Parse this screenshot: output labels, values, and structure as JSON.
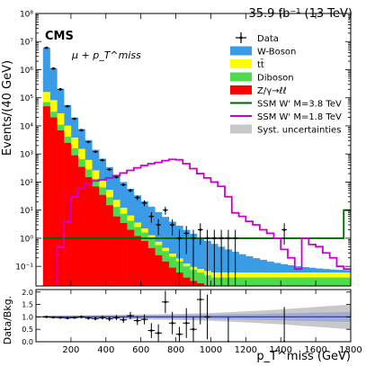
{
  "header": {
    "lumi": "35.9 fb⁻¹ (13 TeV)",
    "cms_label": "CMS",
    "channel": "μ + p_T^miss"
  },
  "chart_data": [
    {
      "type": "histogram",
      "yscale": "log",
      "ylabel": "Events/(40 GeV)",
      "xlim": [
        0,
        1800
      ],
      "ylim": [
        0.02,
        100000000
      ],
      "yticks": [
        {
          "v": 0.1,
          "label": "10⁻¹"
        },
        {
          "v": 1,
          "label": "10⁰"
        },
        {
          "v": 10,
          "label": "10¹"
        },
        {
          "v": 100,
          "label": "10²"
        },
        {
          "v": 1000,
          "label": "10³"
        },
        {
          "v": 10000,
          "label": "10⁴"
        },
        {
          "v": 100000,
          "label": "10⁵"
        },
        {
          "v": 1000000,
          "label": "10⁶"
        },
        {
          "v": 10000000,
          "label": "10⁷"
        },
        {
          "v": 100000000,
          "label": "10⁸"
        }
      ],
      "bin_edges": [
        40,
        80,
        120,
        160,
        200,
        240,
        280,
        320,
        360,
        400,
        440,
        480,
        520,
        560,
        600,
        640,
        680,
        720,
        760,
        800,
        840,
        880,
        920,
        960,
        1000,
        1040,
        1080,
        1120,
        1160,
        1200,
        1240,
        1280,
        1320,
        1360,
        1400,
        1440,
        1480,
        1520,
        1560,
        1600,
        1640,
        1680,
        1720,
        1760,
        1800
      ],
      "stack": [
        {
          "name": "Z/γ→ℓℓ",
          "color": "#ff0000",
          "values": [
            50000,
            20000,
            7000,
            2500,
            900,
            350,
            150,
            70,
            35,
            15,
            6,
            3.5,
            2,
            1.2,
            0.8,
            0.45,
            0.25,
            0.15,
            0.09,
            0.06,
            0.04,
            0.03,
            0.025,
            0.02,
            0.02,
            0.02,
            0.02,
            0.02,
            0.02,
            0.02,
            0.02,
            0.02,
            0.02,
            0.02,
            0.02,
            0.02,
            0.02,
            0.02,
            0.02,
            0.02,
            0.02,
            0.02,
            0.02,
            0.02
          ]
        },
        {
          "name": "Diboson",
          "color": "#4ddc4d",
          "values": [
            20000,
            12000,
            4000,
            1600,
            700,
            300,
            130,
            60,
            30,
            14,
            7,
            4,
            2.2,
            1.3,
            0.8,
            0.5,
            0.32,
            0.2,
            0.13,
            0.09,
            0.06,
            0.045,
            0.035,
            0.028,
            0.02,
            0.02,
            0.02,
            0.02,
            0.02,
            0.02,
            0.02,
            0.02,
            0.02,
            0.02,
            0.02,
            0.02,
            0.02,
            0.02,
            0.02,
            0.02,
            0.02,
            0.02,
            0.02,
            0.02
          ]
        },
        {
          "name": "tt̄",
          "color": "#ffff00",
          "values": [
            90000,
            50000,
            17000,
            6000,
            2200,
            850,
            330,
            130,
            55,
            23,
            10,
            4.5,
            2.2,
            1.1,
            0.6,
            0.32,
            0.18,
            0.1,
            0.06,
            0.04,
            0.025,
            0.02,
            0.02,
            0.02,
            0.02,
            0.02,
            0.02,
            0.02,
            0.02,
            0.02,
            0.02,
            0.02,
            0.02,
            0.02,
            0.02,
            0.02,
            0.02,
            0.02,
            0.02,
            0.02,
            0.02,
            0.02,
            0.02,
            0.02
          ]
        },
        {
          "name": "W-Boson",
          "color": "#3a9be6",
          "values": [
            5800000,
            1000000,
            180000,
            45000,
            16000,
            6200,
            2500,
            1150,
            560,
            290,
            155,
            88,
            51,
            30,
            18.5,
            12,
            7.8,
            5.3,
            3.6,
            2.6,
            1.85,
            1.35,
            1.0,
            0.75,
            0.57,
            0.44,
            0.34,
            0.27,
            0.21,
            0.17,
            0.135,
            0.11,
            0.088,
            0.072,
            0.059,
            0.049,
            0.041,
            0.034,
            0.029,
            0.024,
            0.02,
            0.017,
            0.015,
            0.013
          ]
        }
      ],
      "data": {
        "name": "Data",
        "values": [
          6000000,
          1100000,
          200000,
          50000,
          18000,
          7000,
          2700,
          1200,
          600,
          280,
          150,
          80,
          50,
          28,
          18,
          6,
          3,
          10,
          3,
          1,
          1.5,
          1,
          2,
          1,
          1,
          1,
          1,
          1,
          1,
          0.9,
          1.2,
          0.9,
          0.7,
          0.6,
          2.0,
          0.8,
          0.6,
          0.5,
          0.4,
          0.35,
          0.3,
          0.25,
          0.2,
          0.15
        ],
        "show": [
          true,
          true,
          true,
          true,
          true,
          true,
          true,
          true,
          true,
          true,
          true,
          true,
          true,
          true,
          true,
          true,
          true,
          true,
          true,
          true,
          true,
          true,
          true,
          true,
          true,
          true,
          true,
          true,
          false,
          false,
          false,
          false,
          false,
          false,
          true,
          false,
          false,
          false,
          false,
          false,
          false,
          false,
          false,
          false
        ]
      },
      "signals": [
        {
          "name": "SSM W' M=3.8 TeV",
          "color": "#006400",
          "values": [
            1.0,
            1.0,
            1.0,
            1.0,
            1.0,
            1.0,
            1.0,
            1.0,
            1.0,
            1.0,
            1.0,
            1.0,
            1.0,
            1.0,
            1.0,
            1.0,
            1.0,
            1.0,
            1.0,
            1.0,
            1.0,
            1.0,
            1.0,
            1.0,
            1.0,
            1.0,
            1.0,
            1.0,
            1.0,
            1.0,
            1.0,
            1.0,
            1.0,
            1.0,
            1.0,
            1.0,
            1.0,
            1.0,
            1.0,
            1.0,
            1.0,
            1.0,
            1.0,
            10.0
          ]
        },
        {
          "name": "SSM W' M=1.8 TeV",
          "color": "#cc00cc",
          "values": [
            0.02,
            0.02,
            0.5,
            4,
            30,
            60,
            90,
            110,
            120,
            140,
            170,
            210,
            260,
            320,
            390,
            450,
            500,
            580,
            640,
            620,
            450,
            300,
            200,
            140,
            100,
            70,
            30,
            8,
            6,
            4,
            3,
            2,
            1.5,
            1,
            0.4,
            0.2,
            0.08,
            1.0,
            0.6,
            0.5,
            0.3,
            0.2,
            0.1,
            0.08
          ]
        }
      ],
      "legend": {
        "position": "top-right",
        "entries": [
          {
            "label": "Data",
            "kind": "marker"
          },
          {
            "label": "W-Boson",
            "kind": "fill",
            "color": "#3a9be6"
          },
          {
            "label": "tt̄",
            "kind": "fill",
            "color": "#ffff00"
          },
          {
            "label": "Diboson",
            "kind": "fill",
            "color": "#4ddc4d"
          },
          {
            "label": "Z/γ→ℓℓ",
            "kind": "fill",
            "color": "#ff0000"
          },
          {
            "label": "SSM W' M=3.8 TeV",
            "kind": "line",
            "color": "#006400"
          },
          {
            "label": "SSM W' M=1.8 TeV",
            "kind": "line",
            "color": "#cc00cc"
          },
          {
            "label": "Syst. uncertainties",
            "kind": "fill",
            "color": "#c8c8c8"
          }
        ]
      }
    },
    {
      "type": "scatter",
      "ylabel": "Data/Bkg.",
      "xlabel": "p_T^miss (GeV)",
      "xlim": [
        0,
        1800
      ],
      "ylim": [
        0,
        2.1
      ],
      "yticks": [
        {
          "v": 0.0,
          "label": "0.0"
        },
        {
          "v": 0.5,
          "label": "0.5"
        },
        {
          "v": 1.0,
          "label": "1.0"
        },
        {
          "v": 1.5,
          "label": "1.5"
        },
        {
          "v": 2.0,
          "label": "2.0"
        }
      ],
      "xticks": [
        {
          "v": 200,
          "label": "200"
        },
        {
          "v": 400,
          "label": "400"
        },
        {
          "v": 600,
          "label": "600"
        },
        {
          "v": 800,
          "label": "800"
        },
        {
          "v": 1000,
          "label": "1000"
        },
        {
          "v": 1200,
          "label": "1200"
        },
        {
          "v": 1400,
          "label": "1400"
        },
        {
          "v": 1600,
          "label": "1600"
        },
        {
          "v": 1800,
          "label": "1800"
        }
      ],
      "ratio_band": {
        "x": [
          40,
          200,
          400,
          600,
          800,
          1000,
          1200,
          1400,
          1600,
          1800
        ],
        "err": [
          0.05,
          0.06,
          0.08,
          0.1,
          0.12,
          0.16,
          0.22,
          0.3,
          0.4,
          0.5
        ]
      },
      "stat_band": {
        "x": [
          40,
          200,
          400,
          600,
          800,
          1000,
          1200,
          1400,
          1600,
          1800
        ],
        "err": [
          0.03,
          0.04,
          0.05,
          0.06,
          0.07,
          0.09,
          0.11,
          0.14,
          0.17,
          0.2
        ]
      },
      "points": [
        {
          "x": 60,
          "y": 1.0,
          "err": 0.02
        },
        {
          "x": 100,
          "y": 0.98,
          "err": 0.02
        },
        {
          "x": 140,
          "y": 0.97,
          "err": 0.03
        },
        {
          "x": 180,
          "y": 0.95,
          "err": 0.03
        },
        {
          "x": 220,
          "y": 0.97,
          "err": 0.04
        },
        {
          "x": 260,
          "y": 1.0,
          "err": 0.05
        },
        {
          "x": 300,
          "y": 0.95,
          "err": 0.06
        },
        {
          "x": 340,
          "y": 0.93,
          "err": 0.07
        },
        {
          "x": 380,
          "y": 0.97,
          "err": 0.08
        },
        {
          "x": 420,
          "y": 0.92,
          "err": 0.09
        },
        {
          "x": 460,
          "y": 0.97,
          "err": 0.1
        },
        {
          "x": 500,
          "y": 0.88,
          "err": 0.12
        },
        {
          "x": 540,
          "y": 1.05,
          "err": 0.15
        },
        {
          "x": 580,
          "y": 0.85,
          "err": 0.18
        },
        {
          "x": 620,
          "y": 0.9,
          "err": 0.2
        },
        {
          "x": 660,
          "y": 0.45,
          "err": 0.3
        },
        {
          "x": 700,
          "y": 0.35,
          "err": 0.35
        },
        {
          "x": 740,
          "y": 1.6,
          "err": 0.45
        },
        {
          "x": 780,
          "y": 0.75,
          "err": 0.45
        },
        {
          "x": 820,
          "y": 0.3,
          "err": 0.3
        },
        {
          "x": 860,
          "y": 0.75,
          "err": 0.6
        },
        {
          "x": 900,
          "y": 0.5,
          "err": 0.5
        },
        {
          "x": 940,
          "y": 1.7,
          "err": 1.0
        },
        {
          "x": 980,
          "y": 1.0,
          "err": 0.9
        },
        {
          "x": 1100,
          "y": 0.0,
          "err": 1.0
        },
        {
          "x": 1420,
          "y": 0.0,
          "err": 1.4
        }
      ],
      "point_xerr": 20
    }
  ]
}
